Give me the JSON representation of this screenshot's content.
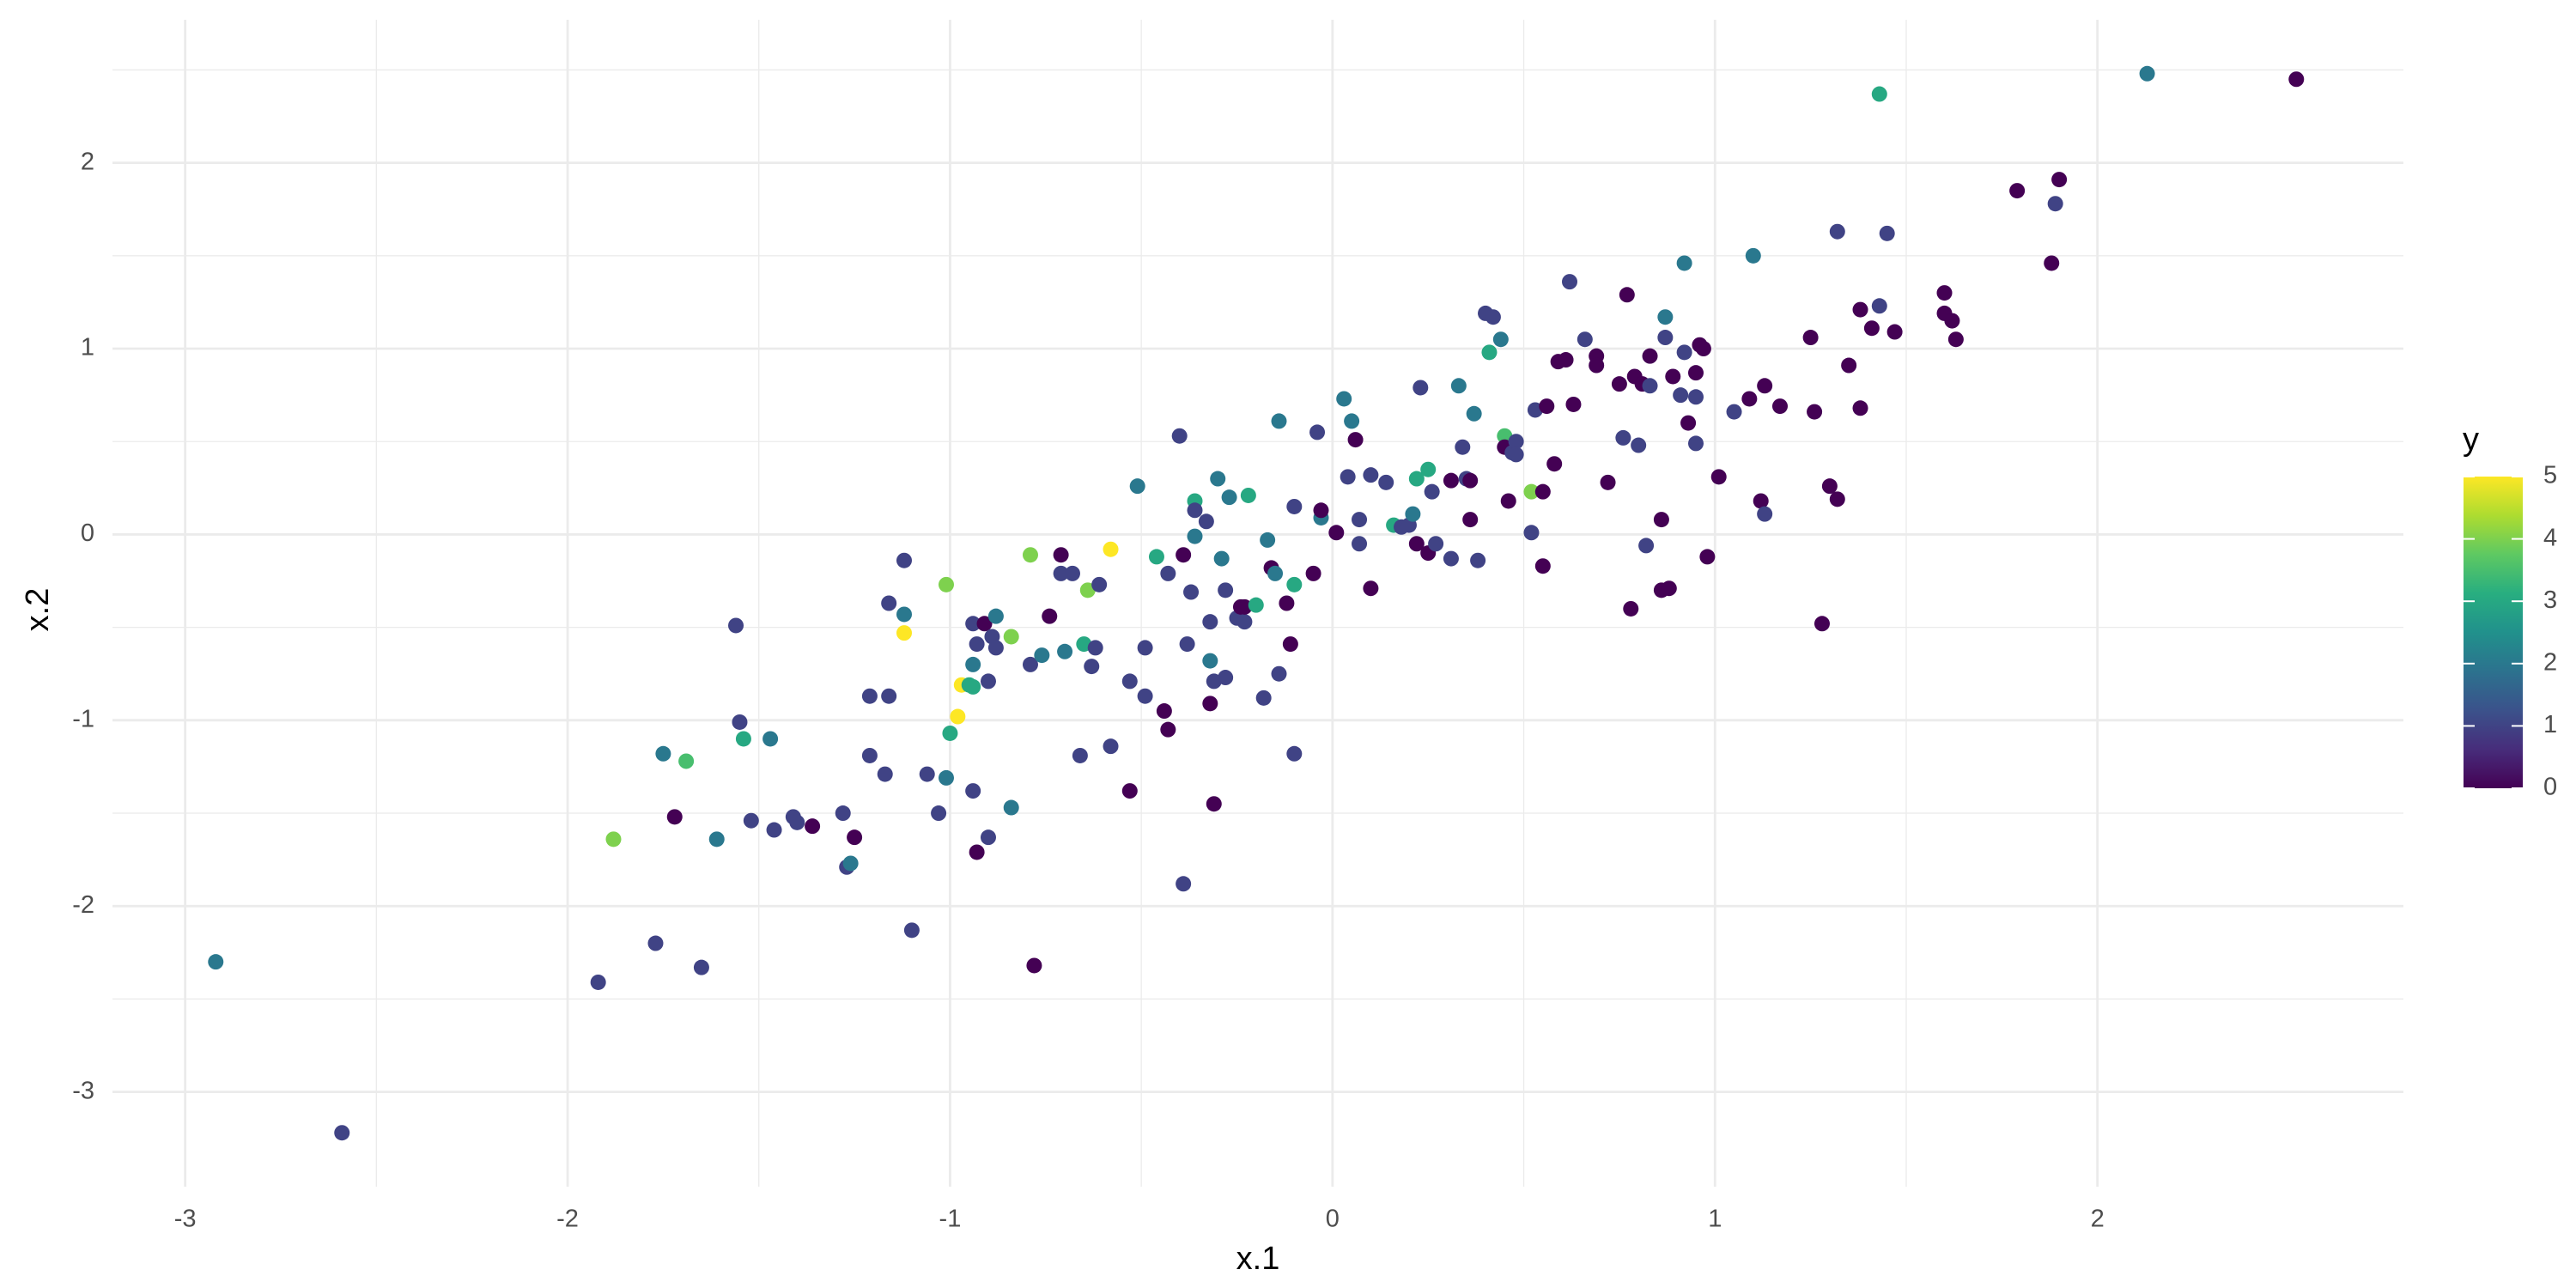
{
  "chart_data": {
    "type": "scatter",
    "x_label": "x.1",
    "y_label": "x.2",
    "colorbar_title": "y",
    "xlim": [
      -3.19,
      2.8
    ],
    "ylim": [
      -3.51,
      2.77
    ],
    "xticks": [
      -3,
      -2,
      -1,
      0,
      1,
      2
    ],
    "yticks": [
      -3,
      -2,
      -1,
      0,
      1,
      2
    ],
    "x_minor_grid": [
      -2.5,
      -1.5,
      -0.5,
      0.5,
      1.5
    ],
    "y_minor_grid": [
      -2.5,
      -1.5,
      -0.5,
      0.5,
      1.5,
      2.5
    ],
    "grid": true,
    "clim": [
      0,
      5
    ],
    "cticks": [
      0,
      1,
      2,
      3,
      4,
      5
    ],
    "colorscale": [
      "#440154",
      "#472d7b",
      "#3b528b",
      "#2c728e",
      "#21918c",
      "#28ae80",
      "#5ec962",
      "#addc30",
      "#fde725"
    ],
    "x": [
      -2.92,
      -2.59,
      -1.92,
      -1.77,
      -1.65,
      -1.88,
      -1.75,
      -1.69,
      -1.72,
      -1.61,
      -1.56,
      -1.55,
      -1.54,
      -1.52,
      -1.47,
      -1.46,
      -1.41,
      -1.4,
      -1.36,
      -1.28,
      -1.25,
      -1.27,
      -1.26,
      -1.21,
      -1.21,
      -1.16,
      -1.16,
      -1.17,
      -1.12,
      -1.12,
      -1.12,
      -1.1,
      -1.06,
      -1.03,
      -1.01,
      -1.01,
      -1.0,
      -0.98,
      -0.97,
      -0.95,
      -0.94,
      -0.93,
      -0.94,
      -0.94,
      -0.94,
      -0.93,
      -0.91,
      -0.9,
      -0.9,
      -0.89,
      -0.88,
      -0.88,
      -0.84,
      -0.84,
      -0.79,
      -0.79,
      -0.78,
      -0.76,
      -0.74,
      -0.71,
      -0.71,
      -0.7,
      -0.68,
      -0.66,
      -0.65,
      -0.64,
      -0.63,
      -0.62,
      -0.61,
      -0.58,
      -0.58,
      -0.53,
      -0.53,
      -0.51,
      -0.49,
      -0.49,
      -0.46,
      -0.44,
      -0.43,
      -0.43,
      -0.4,
      -0.39,
      -0.39,
      -0.38,
      -0.37,
      -0.36,
      -0.36,
      -0.36,
      -0.33,
      -0.32,
      -0.32,
      -0.32,
      -0.31,
      -0.31,
      -0.3,
      -0.29,
      -0.28,
      -0.28,
      -0.27,
      -0.25,
      -0.24,
      -0.23,
      -0.23,
      -0.22,
      -0.2,
      -0.18,
      -0.17,
      -0.16,
      -0.15,
      -0.14,
      -0.14,
      -0.12,
      -0.11,
      -0.1,
      -0.1,
      -0.1,
      -0.05,
      -0.04,
      -0.03,
      -0.03,
      0.01,
      0.03,
      0.04,
      0.05,
      0.06,
      0.07,
      0.07,
      0.1,
      0.1,
      0.14,
      0.16,
      0.18,
      0.2,
      0.21,
      0.22,
      0.22,
      0.23,
      0.25,
      0.25,
      0.26,
      0.27,
      0.31,
      0.31,
      0.33,
      0.34,
      0.35,
      0.36,
      0.36,
      0.37,
      0.38,
      0.4,
      0.41,
      0.42,
      0.44,
      0.45,
      0.45,
      0.46,
      0.47,
      0.48,
      0.48,
      0.52,
      0.52,
      0.53,
      0.55,
      0.55,
      0.56,
      0.58,
      0.59,
      0.61,
      0.62,
      0.63,
      0.66,
      0.69,
      0.69,
      0.72,
      0.75,
      0.76,
      0.77,
      0.78,
      0.79,
      0.8,
      0.81,
      0.82,
      0.83,
      0.83,
      0.86,
      0.86,
      0.87,
      0.87,
      0.88,
      0.89,
      0.91,
      0.92,
      0.92,
      0.93,
      0.95,
      0.95,
      0.95,
      0.96,
      0.97,
      0.98,
      1.01,
      1.05,
      1.09,
      1.1,
      1.12,
      1.13,
      1.13,
      1.17,
      1.25,
      1.26,
      1.28,
      1.3,
      1.32,
      1.32,
      1.35,
      1.38,
      1.38,
      1.41,
      1.43,
      1.43,
      1.45,
      1.47,
      1.6,
      1.6,
      1.62,
      1.63,
      1.79,
      1.88,
      1.89,
      1.9,
      2.13,
      2.52
    ],
    "values": [
      -2.3,
      -3.22,
      -2.41,
      -2.2,
      -2.33,
      -1.64,
      -1.18,
      -1.22,
      -1.52,
      -1.64,
      -0.49,
      -1.01,
      -1.1,
      -1.54,
      -1.1,
      -1.59,
      -1.52,
      -1.55,
      -1.57,
      -1.5,
      -1.63,
      -1.79,
      -1.77,
      -0.87,
      -1.19,
      -0.37,
      -0.87,
      -1.29,
      -0.14,
      -0.43,
      -0.53,
      -2.13,
      -1.29,
      -1.5,
      -0.27,
      -1.31,
      -1.07,
      -0.98,
      -0.81,
      -0.81,
      -0.48,
      -0.59,
      -0.7,
      -0.82,
      -1.38,
      -1.71,
      -0.48,
      -0.79,
      -1.63,
      -0.55,
      -0.44,
      -0.61,
      -0.55,
      -1.47,
      -0.7,
      -0.11,
      -2.32,
      -0.65,
      -0.44,
      -0.11,
      -0.21,
      -0.63,
      -0.21,
      -1.19,
      -0.59,
      -0.3,
      -0.71,
      -0.61,
      -0.27,
      -0.08,
      -1.14,
      -1.38,
      -0.79,
      0.26,
      -0.61,
      -0.87,
      -0.12,
      -0.95,
      -1.05,
      -0.21,
      0.53,
      -1.88,
      -0.11,
      -0.59,
      -0.31,
      0.18,
      0.13,
      -0.01,
      0.07,
      -0.47,
      -0.68,
      -0.91,
      -1.45,
      -0.79,
      0.3,
      -0.13,
      -0.77,
      -0.3,
      0.2,
      -0.45,
      -0.39,
      -0.47,
      -0.39,
      0.21,
      -0.38,
      -0.88,
      -0.03,
      -0.18,
      -0.21,
      0.61,
      -0.75,
      -0.37,
      -0.59,
      -0.27,
      -1.18,
      0.15,
      -0.21,
      0.55,
      0.09,
      0.13,
      0.01,
      0.73,
      0.31,
      0.61,
      0.51,
      0.08,
      -0.05,
      0.32,
      -0.29,
      0.28,
      0.05,
      0.04,
      0.05,
      0.11,
      -0.05,
      0.3,
      0.79,
      0.35,
      -0.1,
      0.23,
      -0.05,
      -0.13,
      0.29,
      0.8,
      0.47,
      0.3,
      0.29,
      0.08,
      0.65,
      -0.14,
      1.19,
      0.98,
      1.17,
      1.05,
      0.53,
      0.47,
      0.18,
      0.44,
      0.5,
      0.43,
      0.01,
      0.23,
      0.67,
      0.23,
      -0.17,
      0.69,
      0.38,
      0.93,
      0.94,
      1.36,
      0.7,
      1.05,
      0.96,
      0.91,
      0.28,
      0.81,
      0.52,
      1.29,
      -0.4,
      0.85,
      0.48,
      0.81,
      -0.06,
      0.8,
      0.96,
      0.08,
      -0.3,
      1.17,
      1.06,
      -0.29,
      0.85,
      0.75,
      1.46,
      0.98,
      0.6,
      0.87,
      0.74,
      0.49,
      1.02,
      1.0,
      -0.12,
      0.31,
      0.66,
      0.73,
      1.5,
      0.18,
      0.8,
      0.11,
      0.69,
      1.06,
      0.66,
      -0.48,
      0.26,
      1.63,
      0.19,
      0.91,
      0.68,
      1.21,
      1.11,
      1.23,
      2.37,
      1.62,
      1.09,
      1.3,
      1.19,
      1.15,
      1.05,
      1.85,
      1.46,
      1.78,
      1.91,
      2.48,
      2.45
    ],
    "color_values": [
      2,
      1,
      1,
      1,
      1,
      4,
      2,
      3.5,
      0,
      2,
      1,
      1,
      3,
      1,
      2,
      1,
      1,
      1,
      0,
      1,
      0,
      1,
      2,
      1,
      1,
      1,
      1,
      1,
      1,
      2,
      5,
      1,
      1,
      1,
      4,
      2,
      3,
      5,
      5,
      3,
      1,
      1,
      2,
      3,
      1,
      0,
      0,
      1,
      1,
      1,
      2,
      1,
      4,
      2,
      1,
      4,
      0,
      2,
      0,
      0,
      1,
      2,
      1,
      1,
      3,
      4,
      1,
      1,
      1,
      5,
      1,
      0,
      1,
      2,
      1,
      1,
      3,
      0,
      0,
      1,
      1,
      1,
      0,
      1,
      1,
      3,
      1,
      2,
      1,
      1,
      2,
      0,
      0,
      1,
      2,
      2,
      1,
      1,
      2,
      1,
      0,
      1,
      0,
      3,
      3,
      1,
      2,
      0,
      2,
      2,
      1,
      0,
      0,
      3,
      1,
      1,
      0,
      1,
      2,
      0,
      0,
      2,
      1,
      2,
      0,
      1,
      1,
      1,
      0,
      1,
      3,
      1,
      1,
      2,
      0,
      3,
      1,
      3,
      0,
      1,
      1,
      1,
      0,
      2,
      1,
      1,
      0,
      0,
      2,
      1,
      1,
      3,
      1,
      2,
      3.5,
      0,
      0,
      1,
      1,
      1,
      1,
      4,
      1,
      0,
      0,
      0,
      0,
      0,
      0,
      1,
      0,
      1,
      0,
      0,
      0,
      0,
      1,
      0,
      0,
      0,
      1,
      0,
      1,
      1,
      0,
      0,
      0,
      2,
      1,
      0,
      0,
      1,
      2,
      1,
      0,
      0,
      1,
      1,
      0,
      0,
      0,
      0,
      1,
      0,
      2,
      0,
      0,
      1,
      0,
      0,
      0,
      0,
      0,
      1,
      0,
      0,
      0,
      0,
      0,
      1,
      3,
      1,
      0,
      0,
      0,
      0,
      0,
      0,
      0,
      1,
      0,
      2,
      0
    ]
  }
}
